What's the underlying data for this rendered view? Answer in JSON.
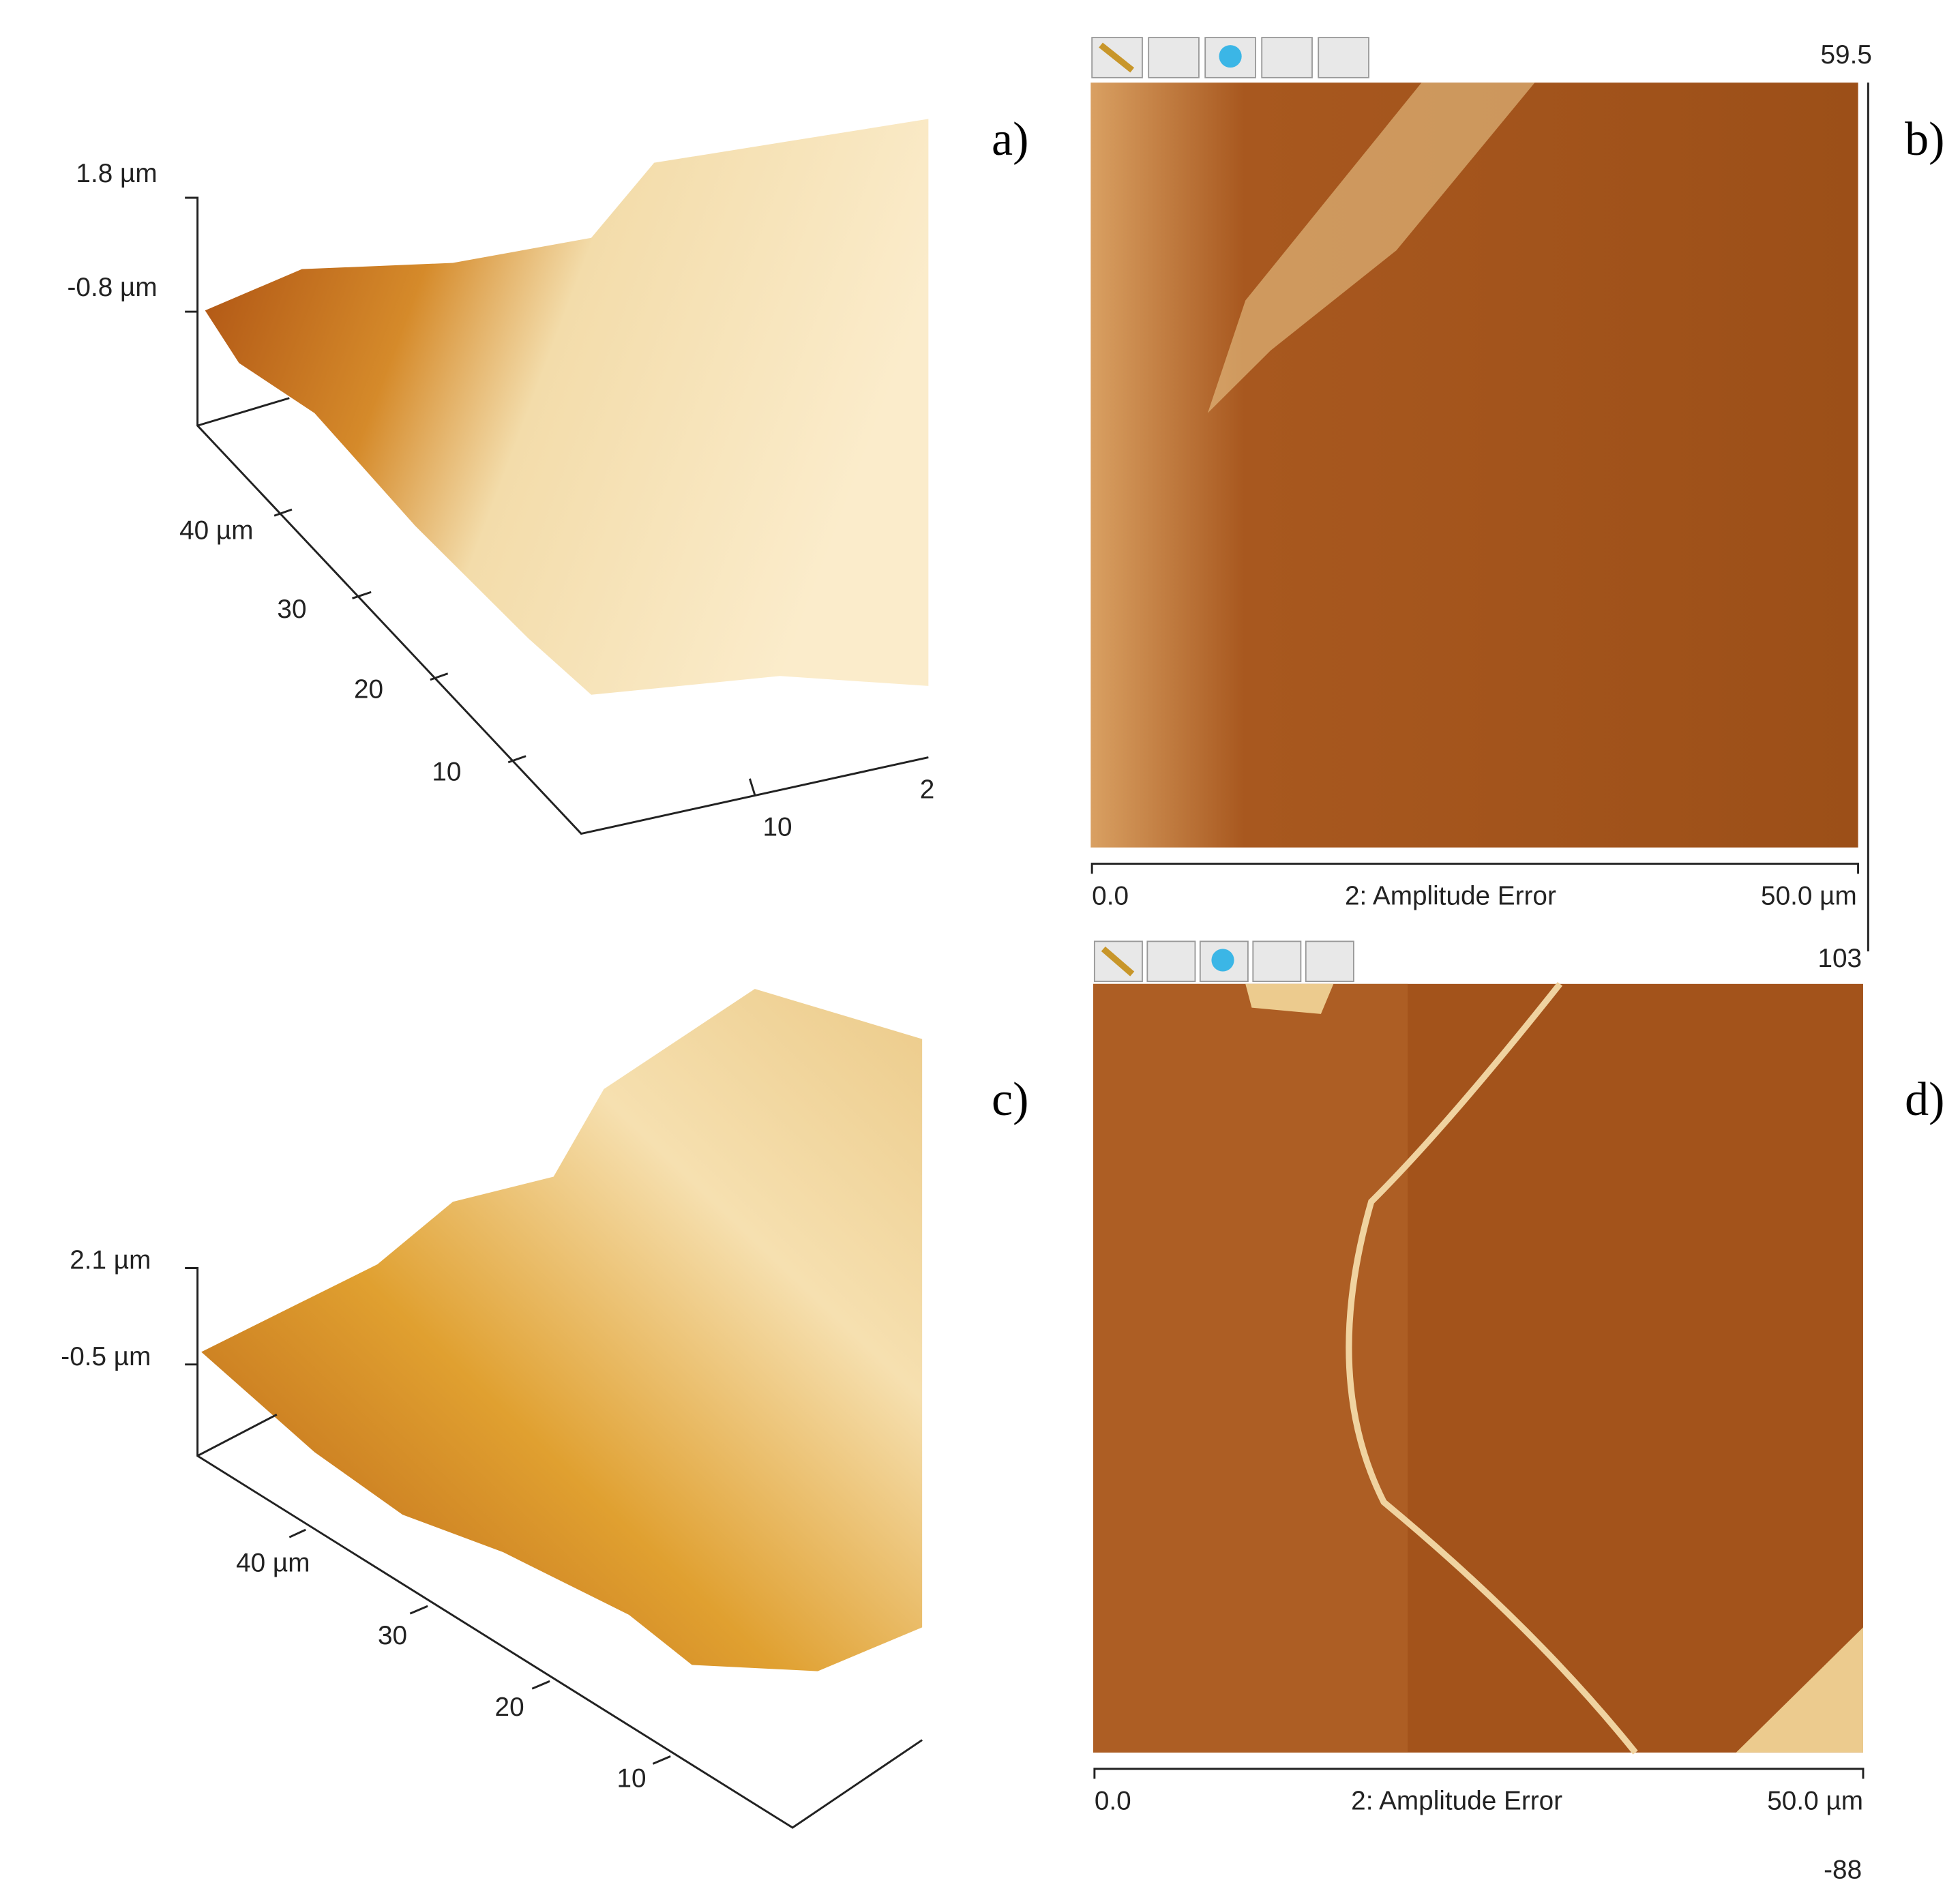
{
  "panels": [
    {
      "label": "a)",
      "z_labels": [
        "1.8 µm",
        "-0.8 µm"
      ],
      "y_labels": [
        "40 µm",
        "30",
        "20",
        "10"
      ],
      "x_labels": [
        "10",
        "2"
      ]
    },
    {
      "label": "b)",
      "scale_top": "59.5",
      "x_start": "0.0",
      "channel": "2: Amplitude Error",
      "x_end": "50.0 µm"
    },
    {
      "label": "c)",
      "z_labels": [
        "2.1 µm",
        "-0.5 µm"
      ],
      "y_labels": [
        "40 µm",
        "30",
        "20",
        "10"
      ]
    },
    {
      "label": "d)",
      "scale_top": "103",
      "x_start": "0.0",
      "channel": "2: Amplitude Error",
      "x_end": "50.0 µm",
      "scale_bottom": "-88"
    }
  ]
}
